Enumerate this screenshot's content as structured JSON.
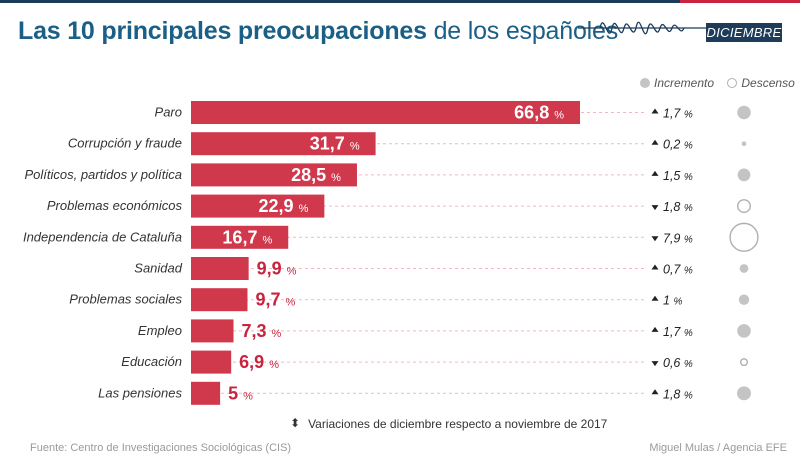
{
  "header": {
    "title_bold": "Las 10 principales preocupaciones",
    "title_rest": "de los españoles",
    "badge": "DICIEMBRE"
  },
  "legend": {
    "increase": "Incremento",
    "decrease": "Descenso"
  },
  "chart_data": {
    "type": "bar",
    "orientation": "horizontal",
    "title": "Las 10 principales preocupaciones de los españoles",
    "period": "DICIEMBRE",
    "unit": "%",
    "categories": [
      "Paro",
      "Corrupción y fraude",
      "Políticos, partidos y política",
      "Problemas económicos",
      "Independencia de Cataluña",
      "Sanidad",
      "Problemas sociales",
      "Empleo",
      "Educación",
      "Las pensiones"
    ],
    "values": [
      66.8,
      31.7,
      28.5,
      22.9,
      16.7,
      9.9,
      9.7,
      7.3,
      6.9,
      5
    ],
    "value_labels": [
      "66,8",
      "31,7",
      "28,5",
      "22,9",
      "16,7",
      "9,9",
      "9,7",
      "7,3",
      "6,9",
      "5"
    ],
    "variation": [
      1.7,
      0.2,
      1.5,
      -1.8,
      -7.9,
      0.7,
      1,
      1.7,
      -0.6,
      1.8
    ],
    "variation_labels": [
      "1,7",
      "0,2",
      "1,5",
      "1,8",
      "7,9",
      "0,7",
      "1",
      "1,7",
      "0,6",
      "1,8"
    ],
    "variation_unit": "%",
    "variation_note": "Variaciones de diciembre respecto a noviembre de 2017",
    "xlim": [
      0,
      70
    ],
    "colors": {
      "bar": "#d0384c",
      "label_inside": "#ffffff",
      "label_outside": "#c8233f",
      "increase": "#c4c4c4",
      "decrease": "#b0b0b0"
    }
  },
  "footer": {
    "note": "Variaciones de diciembre respecto a noviembre de 2017",
    "source": "Fuente: Centro de Investigaciones Sociológicas (CIS)",
    "credit": "Miguel Mulas / Agencia EFE"
  }
}
